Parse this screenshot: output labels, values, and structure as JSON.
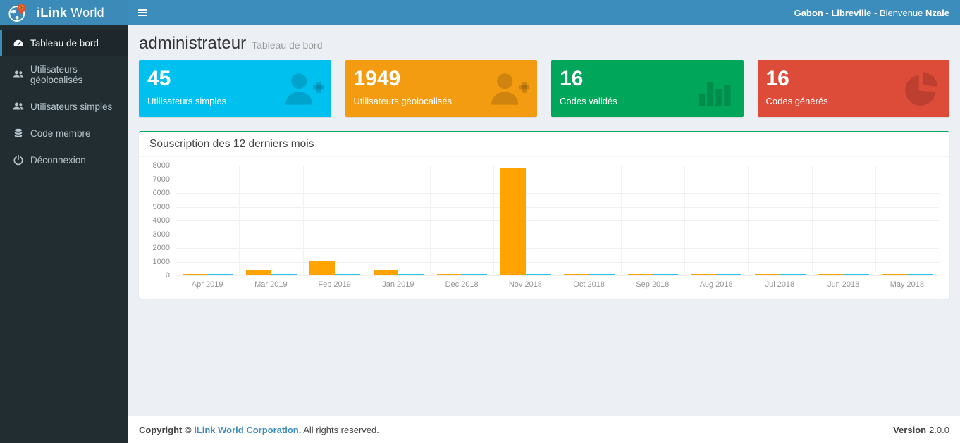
{
  "header": {
    "brand_bold": "iLink",
    "brand_rest": " World",
    "greeting": {
      "country": "Gabon",
      "sep1": " - ",
      "city": "Libreville",
      "sep2": " - ",
      "welcome": "Bienvenue ",
      "name": "Nzale"
    }
  },
  "sidebar": {
    "items": [
      {
        "label": "Tableau de bord",
        "icon": "dashboard-icon",
        "active": true
      },
      {
        "label": "Utilisateurs géolocalisés",
        "icon": "users-icon",
        "active": false
      },
      {
        "label": "Utilisateurs simples",
        "icon": "users-icon",
        "active": false
      },
      {
        "label": "Code membre",
        "icon": "database-icon",
        "active": false
      },
      {
        "label": "Déconnexion",
        "icon": "power-icon",
        "active": false
      }
    ]
  },
  "content_header": {
    "title": "administrateur",
    "subtitle": "Tableau de bord"
  },
  "stat_cards": [
    {
      "value": "45",
      "label": "Utilisateurs simples",
      "color": "#00c0ef",
      "icon": "user-plus-icon"
    },
    {
      "value": "1949",
      "label": "Utilisateurs géolocalisés",
      "color": "#f39c12",
      "icon": "user-plus-icon"
    },
    {
      "value": "16",
      "label": "Codes validés",
      "color": "#00a65a",
      "icon": "bar-chart-icon"
    },
    {
      "value": "16",
      "label": "Codes générés",
      "color": "#dd4b39",
      "icon": "pie-chart-icon"
    }
  ],
  "chart_panel": {
    "title": "Souscription des 12 derniers mois",
    "accent_color": "#00a65a"
  },
  "chart_data": {
    "type": "bar",
    "title": "Souscription des 12 derniers mois",
    "categories": [
      "Apr 2019",
      "Mar 2019",
      "Feb 2019",
      "Jan 2019",
      "Dec 2018",
      "Nov 2018",
      "Oct 2018",
      "Sep 2018",
      "Aug 2018",
      "Jul 2018",
      "Jun 2018",
      "May 2018"
    ],
    "series": [
      {
        "name": "orange",
        "color": "#ffa300",
        "values": [
          100,
          350,
          1100,
          380,
          100,
          7830,
          100,
          100,
          100,
          100,
          100,
          100
        ]
      },
      {
        "name": "blue",
        "color": "#29c1f2",
        "values": [
          100,
          100,
          100,
          100,
          100,
          100,
          100,
          100,
          100,
          100,
          100,
          100
        ]
      }
    ],
    "ylim": [
      0,
      8000
    ],
    "yticks": [
      8000,
      7000,
      6000,
      5000,
      4000,
      3000,
      2000,
      1000,
      0
    ],
    "grid": true,
    "legend": false
  },
  "footer": {
    "copyright_prefix": "Copyright © ",
    "company": "iLink World Corporation.",
    "copyright_suffix": " All rights reserved.",
    "version_label": "Version",
    "version_value": "2.0.0"
  }
}
